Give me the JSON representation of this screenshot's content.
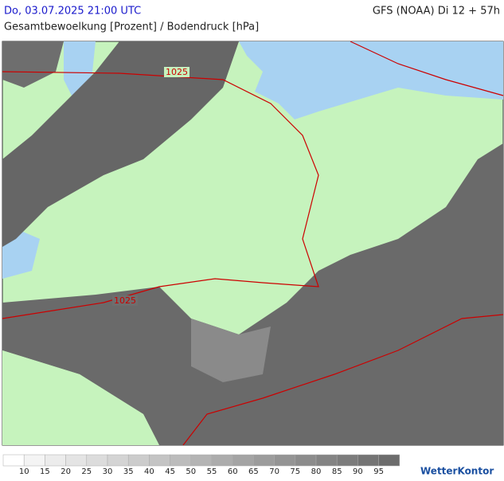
{
  "header": {
    "datetime": "Do, 03.07.2025 21:00 UTC",
    "model": "GFS (NOAA) Di 12 + 57h",
    "subtitle": "Gesamtbewoelkung [Prozent] / Bodendruck [hPa]"
  },
  "map": {
    "isobars": [
      {
        "label": "1025"
      },
      {
        "label": "1025"
      }
    ]
  },
  "legend": {
    "ticks": [
      10,
      15,
      20,
      25,
      30,
      35,
      40,
      45,
      50,
      55,
      60,
      65,
      70,
      75,
      80,
      85,
      90,
      95
    ],
    "colors": [
      "#ffffff",
      "#f4f4f4",
      "#ececec",
      "#e4e4e4",
      "#dcdcdc",
      "#d4d4d4",
      "#cccccc",
      "#c4c4c4",
      "#bcbcbc",
      "#b4b4b4",
      "#acacac",
      "#a4a4a4",
      "#9c9c9c",
      "#949494",
      "#8c8c8c",
      "#848484",
      "#7c7c7c",
      "#747474",
      "#6c6c6c"
    ]
  },
  "logo": "WetterKontor"
}
